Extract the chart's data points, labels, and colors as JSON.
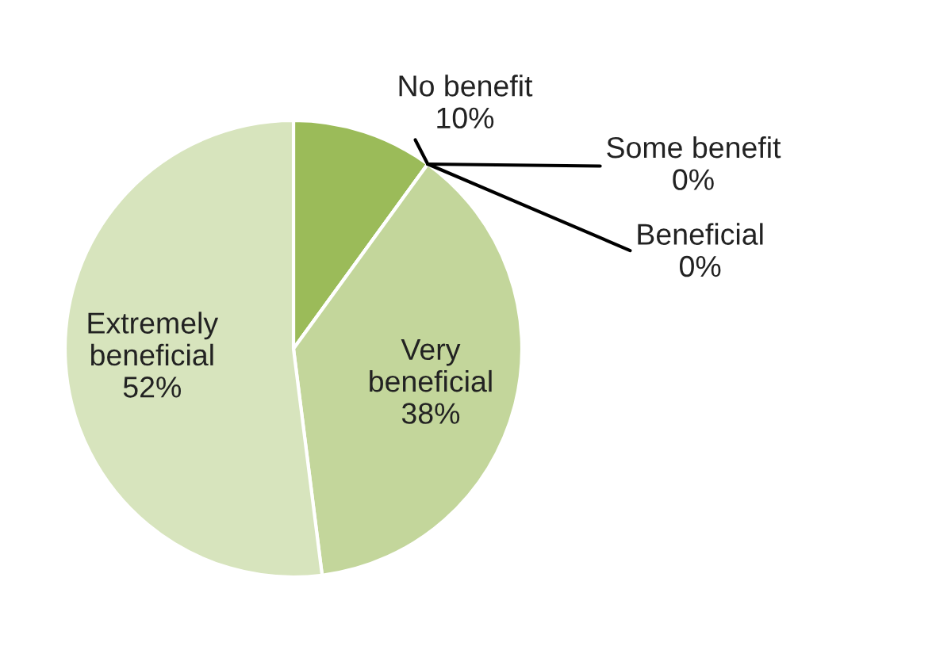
{
  "chart_data": {
    "type": "pie",
    "categories": [
      "No benefit",
      "Some benefit",
      "Beneficial",
      "Very\nbeneficial",
      "Extremely\nbeneficial"
    ],
    "values": [
      10,
      0,
      0,
      38,
      52
    ],
    "value_labels": [
      "10%",
      "0%",
      "0%",
      "38%",
      "52%"
    ],
    "colors": [
      "#9bbb59",
      "#b2cc7f",
      "#a9c772",
      "#c3d69b",
      "#d7e4bd"
    ]
  }
}
